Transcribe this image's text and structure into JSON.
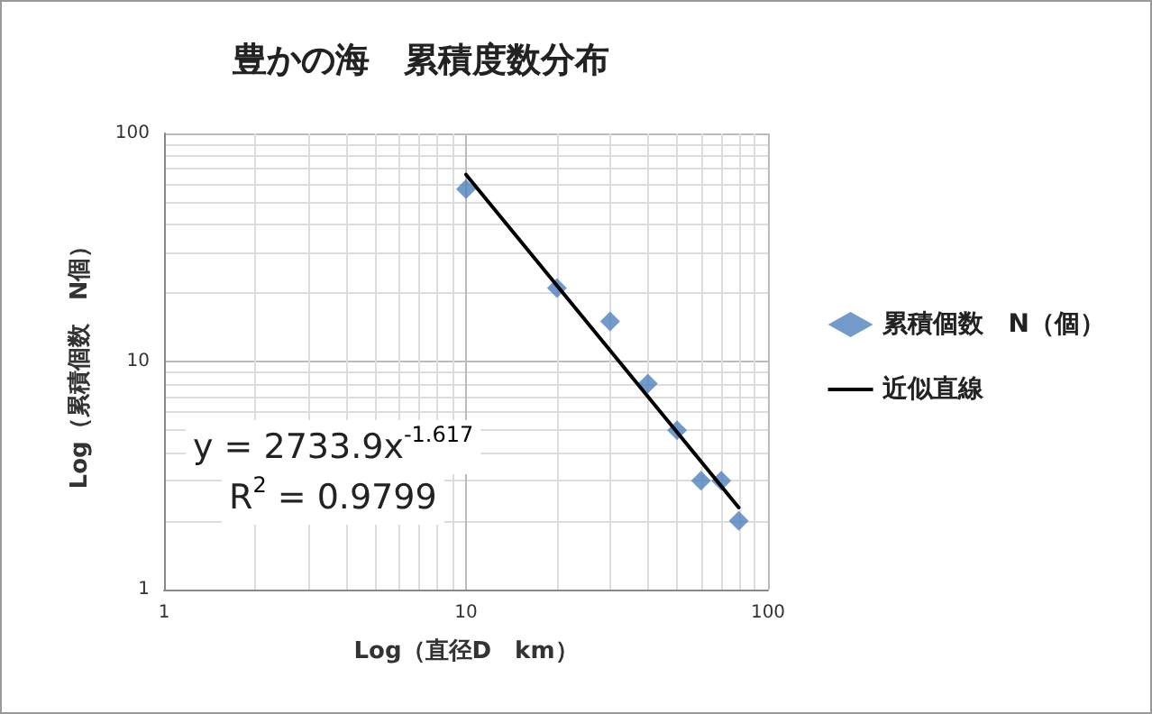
{
  "chart_data": {
    "type": "scatter",
    "title": "豊かの海　累積度数分布",
    "xlabel": "Log（直径D　km）",
    "ylabel": "Log（累積個数　N個）",
    "annotations": [
      "y = 2733.9x$^{-1.617}$",
      "R$^{2}$ = 0.9799"
    ],
    "log": "xy",
    "xlim": [
      1,
      100
    ],
    "ylim": [
      1,
      100
    ],
    "xticks": [
      1,
      10,
      100
    ],
    "yticks": [
      1,
      10,
      100
    ],
    "grid": true,
    "legend": "right",
    "marker": "diamond",
    "series": [
      {
        "name": "累積個数　N（個）",
        "color": "#4f81bd",
        "x": [
          10,
          20,
          30,
          40,
          50,
          60,
          70,
          80
        ],
        "values": [
          57,
          21,
          15,
          8,
          5,
          3,
          3,
          2
        ]
      },
      {
        "name": "近似直線",
        "type": "line",
        "color": "#000000",
        "x": [
          10,
          80
        ],
        "values": [
          66,
          2.29
        ],
        "marker": "none"
      }
    ]
  }
}
